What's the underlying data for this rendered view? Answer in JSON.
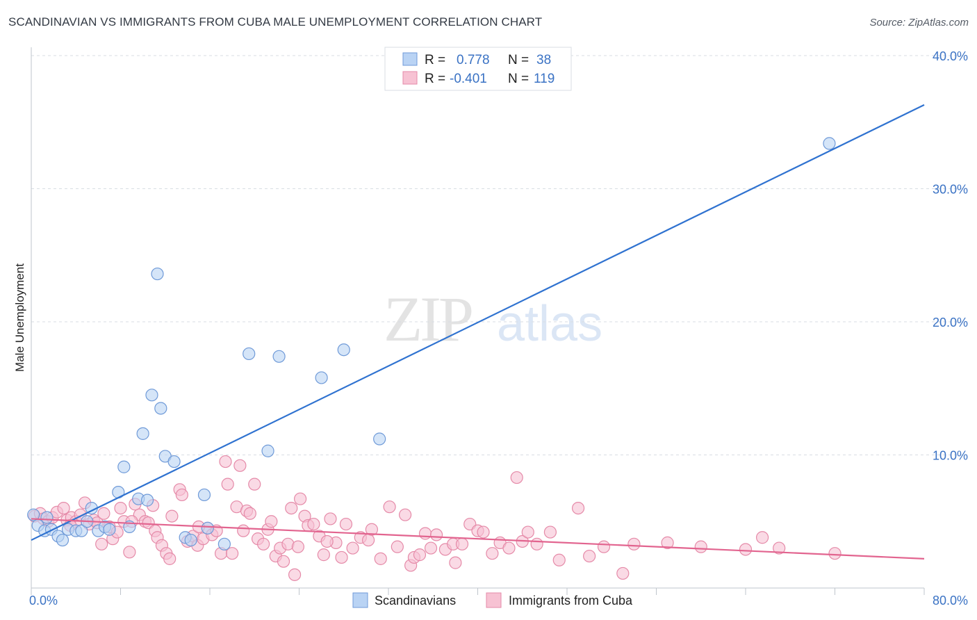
{
  "header": {
    "title": "SCANDINAVIAN VS IMMIGRANTS FROM CUBA MALE UNEMPLOYMENT CORRELATION CHART",
    "source": "Source: ZipAtlas.com"
  },
  "watermark": {
    "zip": "ZIP",
    "atlas": "atlas"
  },
  "colors": {
    "blue_fill": "#b9d3f4",
    "blue_stroke": "#6f9ad8",
    "blue_line": "#2f72d0",
    "pink_fill": "#f7c2d3",
    "pink_stroke": "#e58aa8",
    "pink_line": "#e2648f",
    "tick_label": "#3a72c4",
    "grid": "#d8dde3"
  },
  "legend": {
    "series1": {
      "r_label": "R =",
      "r_value": "0.778",
      "n_label": "N =",
      "n_value": "38"
    },
    "series2": {
      "r_label": "R =",
      "r_value": "-0.401",
      "n_label": "N =",
      "n_value": "119"
    }
  },
  "chart_data": {
    "type": "scatter",
    "title": "SCANDINAVIAN VS IMMIGRANTS FROM CUBA MALE UNEMPLOYMENT CORRELATION CHART",
    "xlabel": "",
    "ylabel": "Male Unemployment",
    "xlim": [
      0,
      80
    ],
    "ylim": [
      0,
      40
    ],
    "x_tick_labels": [
      {
        "value": 0,
        "label": "0.0%"
      },
      {
        "value": 80,
        "label": "80.0%"
      }
    ],
    "y_tick_labels": [
      {
        "value": 10,
        "label": "10.0%"
      },
      {
        "value": 20,
        "label": "20.0%"
      },
      {
        "value": 30,
        "label": "30.0%"
      },
      {
        "value": 40,
        "label": "40.0%"
      }
    ],
    "x_minor_ticks": [
      0,
      8,
      16,
      24,
      32,
      40,
      48,
      56,
      64,
      72,
      80
    ],
    "grid": true,
    "legend_position": "top-center",
    "series": [
      {
        "name": "Scandinavians",
        "trend": {
          "x": [
            0,
            80
          ],
          "y": [
            3.6,
            36.3
          ]
        },
        "points": [
          [
            0.2,
            5.5
          ],
          [
            0.6,
            4.7
          ],
          [
            1.2,
            4.3
          ],
          [
            1.8,
            4.4
          ],
          [
            2.4,
            3.9
          ],
          [
            2.8,
            3.6
          ],
          [
            3.3,
            4.4
          ],
          [
            4.0,
            4.3
          ],
          [
            4.5,
            4.3
          ],
          [
            5.0,
            5.0
          ],
          [
            5.4,
            6.0
          ],
          [
            6.0,
            4.3
          ],
          [
            6.6,
            4.6
          ],
          [
            7.0,
            4.4
          ],
          [
            7.8,
            7.2
          ],
          [
            8.3,
            9.1
          ],
          [
            8.8,
            4.6
          ],
          [
            9.6,
            6.7
          ],
          [
            10.0,
            11.6
          ],
          [
            10.4,
            6.6
          ],
          [
            10.8,
            14.5
          ],
          [
            11.3,
            23.6
          ],
          [
            11.6,
            13.5
          ],
          [
            12.0,
            9.9
          ],
          [
            12.8,
            9.5
          ],
          [
            13.8,
            3.8
          ],
          [
            14.3,
            3.6
          ],
          [
            15.5,
            7.0
          ],
          [
            15.8,
            4.5
          ],
          [
            17.3,
            3.3
          ],
          [
            19.5,
            17.6
          ],
          [
            21.2,
            10.3
          ],
          [
            22.2,
            17.4
          ],
          [
            26.0,
            15.8
          ],
          [
            28.0,
            17.9
          ],
          [
            31.2,
            11.2
          ],
          [
            71.5,
            33.4
          ],
          [
            1.4,
            5.3
          ]
        ]
      },
      {
        "name": "Immigrants from Cuba",
        "trend": {
          "x": [
            0,
            80
          ],
          "y": [
            5.2,
            2.2
          ]
        },
        "points": [
          [
            0.3,
            5.4
          ],
          [
            0.8,
            5.6
          ],
          [
            1.1,
            5.2
          ],
          [
            1.5,
            5.0
          ],
          [
            1.9,
            5.3
          ],
          [
            2.3,
            5.7
          ],
          [
            2.9,
            6.0
          ],
          [
            3.2,
            5.1
          ],
          [
            3.6,
            5.3
          ],
          [
            4.0,
            5.0
          ],
          [
            4.4,
            5.5
          ],
          [
            4.8,
            6.4
          ],
          [
            5.2,
            4.8
          ],
          [
            5.6,
            5.1
          ],
          [
            5.9,
            4.9
          ],
          [
            6.3,
            3.3
          ],
          [
            6.5,
            5.6
          ],
          [
            7.0,
            4.6
          ],
          [
            7.3,
            3.7
          ],
          [
            7.7,
            4.2
          ],
          [
            8.0,
            6.0
          ],
          [
            8.3,
            5.0
          ],
          [
            8.8,
            2.7
          ],
          [
            9.3,
            6.3
          ],
          [
            9.7,
            5.5
          ],
          [
            10.2,
            5.0
          ],
          [
            10.5,
            4.9
          ],
          [
            10.9,
            6.2
          ],
          [
            11.1,
            4.3
          ],
          [
            11.3,
            3.8
          ],
          [
            11.7,
            3.2
          ],
          [
            12.1,
            2.6
          ],
          [
            12.4,
            2.2
          ],
          [
            12.6,
            5.4
          ],
          [
            13.3,
            7.4
          ],
          [
            13.5,
            7.0
          ],
          [
            14.0,
            3.5
          ],
          [
            14.5,
            3.9
          ],
          [
            14.9,
            3.2
          ],
          [
            15.4,
            3.7
          ],
          [
            15.8,
            4.5
          ],
          [
            16.2,
            4.0
          ],
          [
            16.6,
            4.3
          ],
          [
            17.0,
            2.6
          ],
          [
            17.4,
            9.5
          ],
          [
            17.6,
            7.8
          ],
          [
            18.0,
            2.6
          ],
          [
            18.4,
            6.1
          ],
          [
            18.7,
            9.2
          ],
          [
            19.0,
            4.3
          ],
          [
            19.3,
            5.8
          ],
          [
            19.6,
            5.6
          ],
          [
            20.0,
            7.8
          ],
          [
            20.3,
            3.7
          ],
          [
            20.8,
            3.3
          ],
          [
            21.2,
            4.4
          ],
          [
            21.5,
            5.0
          ],
          [
            21.9,
            2.4
          ],
          [
            22.3,
            3.0
          ],
          [
            22.6,
            2.0
          ],
          [
            23.0,
            3.3
          ],
          [
            23.3,
            6.0
          ],
          [
            23.6,
            1.0
          ],
          [
            23.9,
            3.1
          ],
          [
            24.1,
            6.7
          ],
          [
            24.5,
            5.4
          ],
          [
            24.8,
            4.7
          ],
          [
            25.3,
            4.8
          ],
          [
            25.8,
            3.9
          ],
          [
            26.2,
            2.5
          ],
          [
            26.8,
            5.2
          ],
          [
            27.3,
            3.4
          ],
          [
            27.8,
            2.3
          ],
          [
            28.2,
            4.8
          ],
          [
            28.8,
            3.0
          ],
          [
            29.5,
            3.8
          ],
          [
            30.2,
            3.6
          ],
          [
            30.5,
            4.4
          ],
          [
            31.3,
            2.2
          ],
          [
            32.1,
            6.1
          ],
          [
            32.8,
            3.1
          ],
          [
            33.5,
            5.5
          ],
          [
            34.0,
            1.7
          ],
          [
            34.3,
            2.3
          ],
          [
            34.8,
            2.5
          ],
          [
            35.3,
            4.1
          ],
          [
            35.8,
            3.0
          ],
          [
            36.3,
            4.0
          ],
          [
            37.1,
            2.9
          ],
          [
            37.8,
            3.3
          ],
          [
            38.0,
            1.9
          ],
          [
            38.6,
            3.3
          ],
          [
            39.3,
            4.8
          ],
          [
            40.0,
            4.3
          ],
          [
            40.5,
            4.2
          ],
          [
            41.3,
            2.6
          ],
          [
            42.0,
            3.4
          ],
          [
            42.8,
            3.0
          ],
          [
            43.5,
            8.3
          ],
          [
            44.0,
            3.5
          ],
          [
            44.5,
            4.2
          ],
          [
            45.3,
            3.3
          ],
          [
            46.5,
            4.2
          ],
          [
            47.3,
            2.1
          ],
          [
            49.0,
            6.0
          ],
          [
            50.0,
            2.4
          ],
          [
            51.3,
            3.1
          ],
          [
            53.0,
            1.1
          ],
          [
            54.0,
            3.3
          ],
          [
            57.0,
            3.4
          ],
          [
            60.0,
            3.1
          ],
          [
            64.0,
            2.9
          ],
          [
            65.5,
            3.8
          ],
          [
            67.0,
            3.0
          ],
          [
            72.0,
            2.6
          ],
          [
            3.5,
            4.7
          ],
          [
            9.0,
            5.0
          ],
          [
            15.0,
            4.6
          ],
          [
            26.5,
            3.5
          ]
        ]
      }
    ]
  },
  "bottom_legend": {
    "series1": "Scandinavians",
    "series2": "Immigrants from Cuba"
  }
}
